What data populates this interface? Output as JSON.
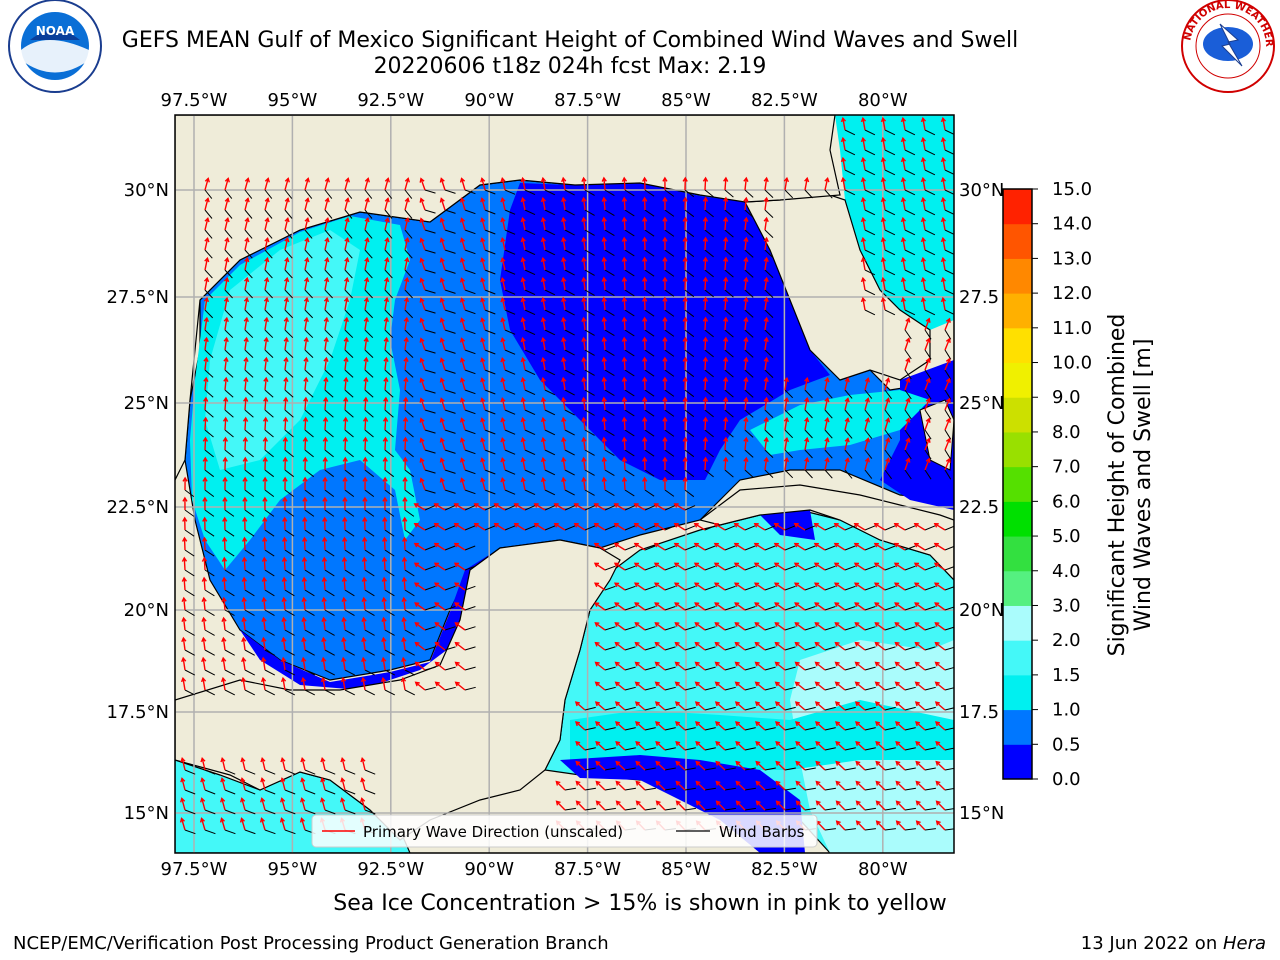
{
  "title": {
    "line1": "GEFS MEAN Gulf of Mexico Significant Height of Combined Wind Waves and Swell",
    "line2": "20220606 t18z 024h fcst   Max: 2.19"
  },
  "map": {
    "lon_ticks": [
      "97.5°W",
      "95°W",
      "92.5°W",
      "90°W",
      "87.5°W",
      "85°W",
      "82.5°W",
      "80°W"
    ],
    "lat_ticks_left": [
      "30°N",
      "27.5°N",
      "25°N",
      "22.5°N",
      "20°N",
      "17.5°N",
      "15°N"
    ],
    "lat_ticks_right": [
      "30°N",
      "27.5",
      "25°N",
      "22.5",
      "20°N",
      "17.5",
      "15°N"
    ],
    "colors": {
      "land": "#efecd9",
      "grid": "#b0b0b0",
      "arrow": "#ff0000",
      "barb": "#000000"
    }
  },
  "legend": {
    "wave_direction": "Primary Wave Direction (unscaled)",
    "wind_barbs": "Wind Barbs"
  },
  "colorbar": {
    "label_line1": "Significant Height of Combined",
    "label_line2": "Wind Waves and Swell [m]",
    "ticks": [
      "0.0",
      "0.5",
      "1.0",
      "1.5",
      "2.0",
      "3.0",
      "4.0",
      "5.0",
      "6.0",
      "7.0",
      "8.0",
      "9.0",
      "10.0",
      "11.0",
      "12.0",
      "13.0",
      "14.0",
      "15.0"
    ],
    "colors": [
      "#0000ff",
      "#0077ff",
      "#00f0f0",
      "#44f8f8",
      "#aafcfc",
      "#55f080",
      "#33e040",
      "#00e000",
      "#55e000",
      "#99e000",
      "#cce000",
      "#f0f000",
      "#ffe000",
      "#ffb000",
      "#ff8800",
      "#ff5500",
      "#ff2200"
    ]
  },
  "logos": {
    "noaa": "NOAA",
    "nws_name": "NATIONAL WEATHER SERVICE"
  },
  "notes": {
    "sea_ice": "Sea Ice Concentration > 15% is shown in pink to yellow"
  },
  "footer": {
    "left": "NCEP/EMC/Verification Post Processing Product Generation Branch",
    "date": "13 Jun 2022 on ",
    "machine": "Hera"
  }
}
